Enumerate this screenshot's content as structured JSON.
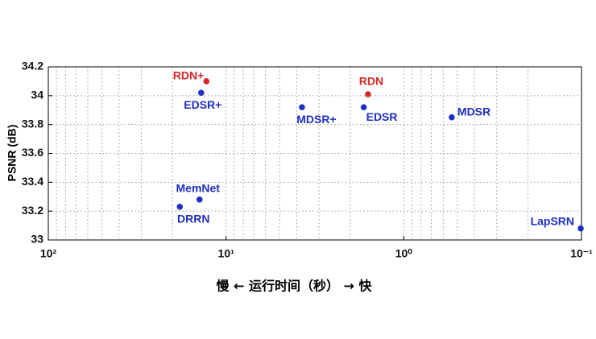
{
  "chart_data": {
    "type": "scatter",
    "y_label": "PSNR (dB)",
    "x_label": "慢 ← 运行时间（秒） → 快",
    "xscale": "log",
    "grid": true,
    "xlim": [
      100,
      0.1
    ],
    "xticks": [
      {
        "value": 100,
        "label": "10²"
      },
      {
        "value": 10,
        "label": "10¹"
      },
      {
        "value": 1,
        "label": "10⁰"
      },
      {
        "value": 0.1,
        "label": "10⁻¹"
      }
    ],
    "xminorticks": [
      90,
      80,
      70,
      60,
      50,
      40,
      30,
      20,
      9,
      8,
      7,
      6,
      5,
      4,
      3,
      2,
      0.9,
      0.8,
      0.7,
      0.6,
      0.5,
      0.4,
      0.3,
      0.2
    ],
    "ylim": [
      33,
      34.2
    ],
    "yticks": [
      33,
      33.2,
      33.4,
      33.6,
      33.8,
      34,
      34.2
    ],
    "points": [
      {
        "label": "RDN+",
        "x": 12.9,
        "y": 34.1,
        "color": "#d62728"
      },
      {
        "label": "EDSR+",
        "x": 13.8,
        "y": 34.02,
        "color": "#1f2fbf"
      },
      {
        "label": "MDSR+",
        "x": 3.74,
        "y": 33.92,
        "color": "#1f2fbf"
      },
      {
        "label": "RDN",
        "x": 1.59,
        "y": 34.01,
        "color": "#d62728"
      },
      {
        "label": "EDSR",
        "x": 1.68,
        "y": 33.92,
        "color": "#1f2fbf"
      },
      {
        "label": "MDSR",
        "x": 0.537,
        "y": 33.85,
        "color": "#1f2fbf"
      },
      {
        "label": "MemNet",
        "x": 14.1,
        "y": 33.28,
        "color": "#1f2fbf"
      },
      {
        "label": "DRRN",
        "x": 18.2,
        "y": 33.23,
        "color": "#1f2fbf"
      },
      {
        "label": "LapSRN",
        "x": 0.101,
        "y": 33.08,
        "color": "#1f2fbf"
      }
    ]
  }
}
